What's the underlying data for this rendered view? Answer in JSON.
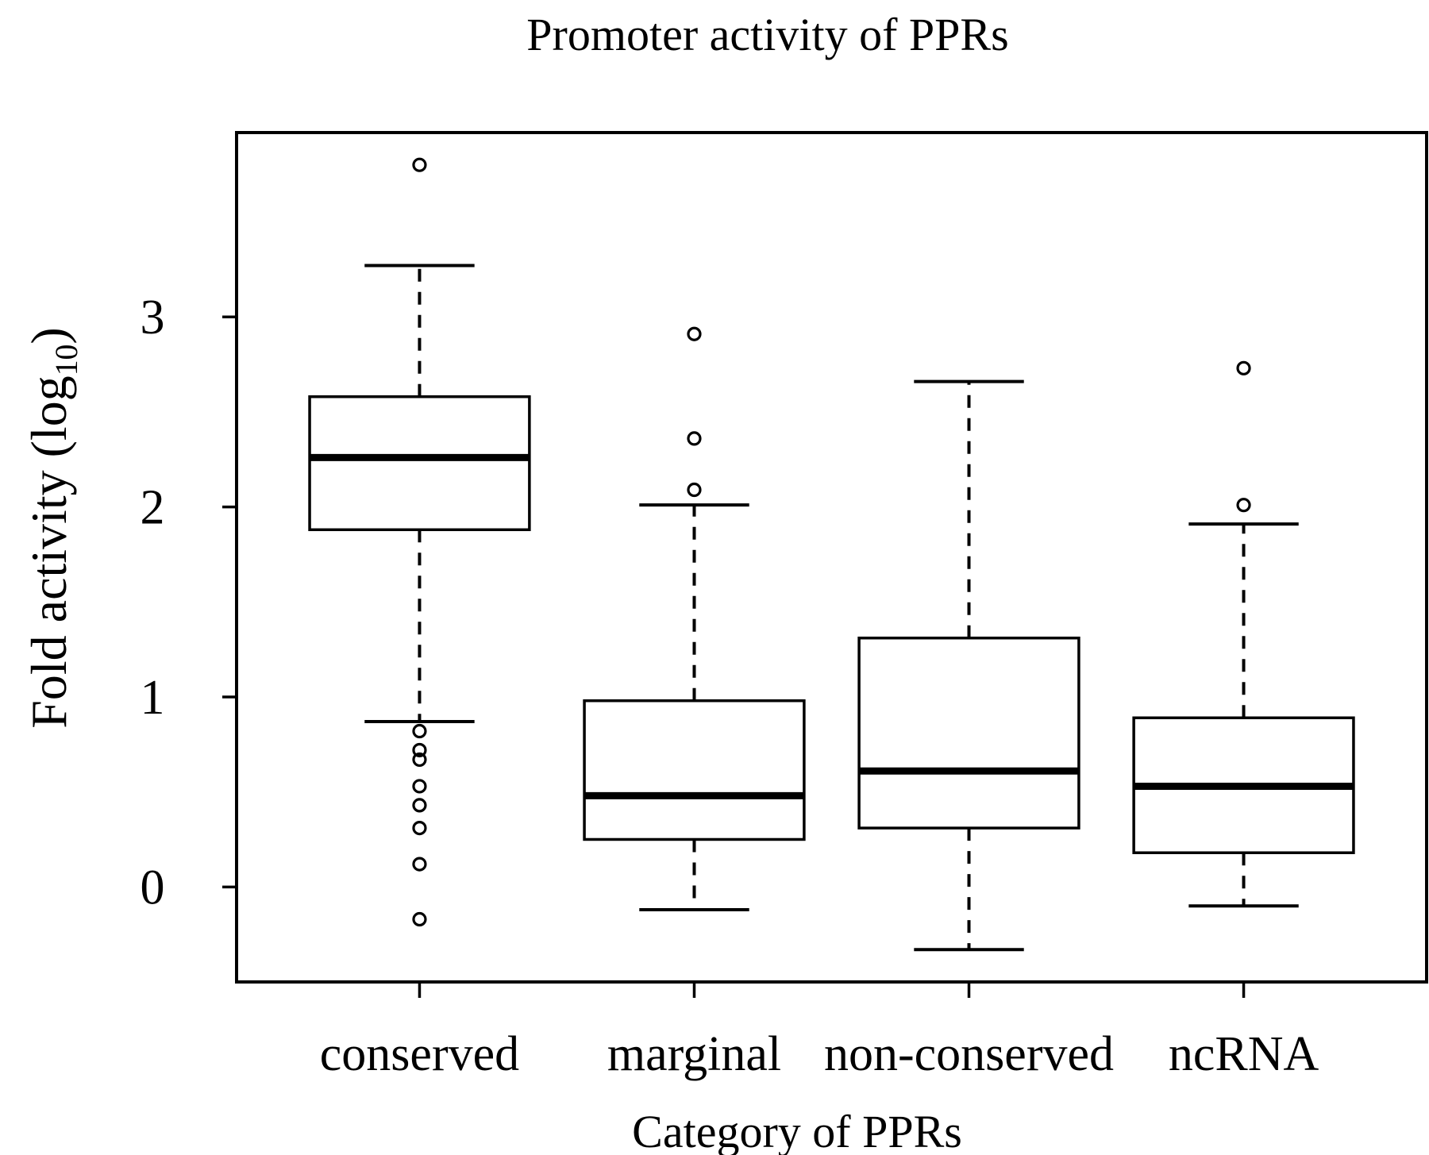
{
  "title": "Promoter activity of PPRs",
  "chart_data": {
    "type": "boxplot",
    "title": "Promoter activity of PPRs",
    "xlabel": "Category of PPRs",
    "ylabel": "Fold activity (log10)",
    "ylabel_parts": {
      "main": "Fold activity (log",
      "sub": "10",
      "close": ")"
    },
    "categories": [
      "conserved",
      "marginal",
      "non-conserved",
      "ncRNA"
    ],
    "yticks": [
      0,
      1,
      2,
      3
    ],
    "ytick_labels": [
      "0",
      "1",
      "2",
      "3"
    ],
    "ylim": [
      -0.5,
      3.97
    ],
    "grid": false,
    "legend": "none",
    "series": [
      {
        "name": "conserved",
        "q1": 1.88,
        "median": 2.26,
        "q3": 2.58,
        "whisker_low": 0.87,
        "whisker_high": 3.27,
        "outliers": [
          3.8,
          0.82,
          0.72,
          0.67,
          0.53,
          0.43,
          0.31,
          0.12,
          -0.17
        ]
      },
      {
        "name": "marginal",
        "q1": 0.25,
        "median": 0.48,
        "q3": 0.98,
        "whisker_low": -0.12,
        "whisker_high": 2.01,
        "outliers": [
          2.91,
          2.36,
          2.09
        ]
      },
      {
        "name": "non-conserved",
        "q1": 0.31,
        "median": 0.61,
        "q3": 1.31,
        "whisker_low": -0.33,
        "whisker_high": 2.66,
        "outliers": []
      },
      {
        "name": "ncRNA",
        "q1": 0.18,
        "median": 0.53,
        "q3": 0.89,
        "whisker_low": -0.1,
        "whisker_high": 1.91,
        "outliers": [
          2.73,
          2.01
        ]
      }
    ],
    "colors": {
      "line": "#000000",
      "box_fill": "#ffffff",
      "background": "#ffffff"
    }
  }
}
